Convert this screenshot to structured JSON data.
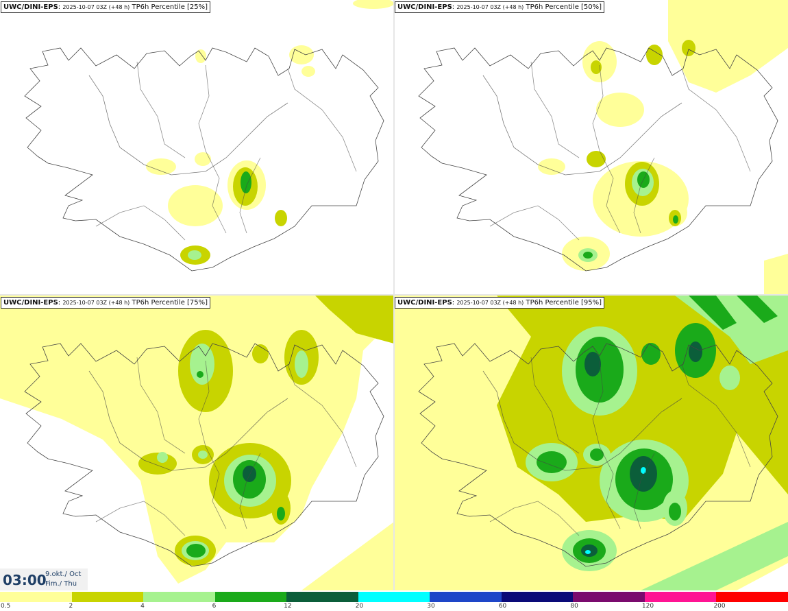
{
  "panels": [
    {
      "model": "UWC/DINI-EPS",
      "run": "2025-10-07 03Z (+48 h)",
      "field": "TP6h Percentile [25%]"
    },
    {
      "model": "UWC/DINI-EPS",
      "run": "2025-10-07 03Z (+48 h)",
      "field": "TP6h Percentile [50%]"
    },
    {
      "model": "UWC/DINI-EPS",
      "run": "2025-10-07 03Z (+48 h)",
      "field": "TP6h Percentile [75%]"
    },
    {
      "model": "UWC/DINI-EPS",
      "run": "2025-10-07 03Z (+48 h)",
      "field": "TP6h Percentile [95%]"
    }
  ],
  "valid_time": {
    "time": "03:00",
    "date_line1": "9.okt./ Oct",
    "date_line2": "Fim./ Thu"
  },
  "legend": {
    "labels": [
      "0.5",
      "2",
      "4",
      "6",
      "12",
      "20",
      "30",
      "60",
      "80",
      "120",
      "200"
    ],
    "colors": [
      "#ffff99",
      "#c8d400",
      "#a6f28f",
      "#1aaa1a",
      "#0b5e3a",
      "#00ffff",
      "#1e46c8",
      "#0a0a78",
      "#7a0a6e",
      "#ff1493",
      "#ff0000"
    ]
  }
}
